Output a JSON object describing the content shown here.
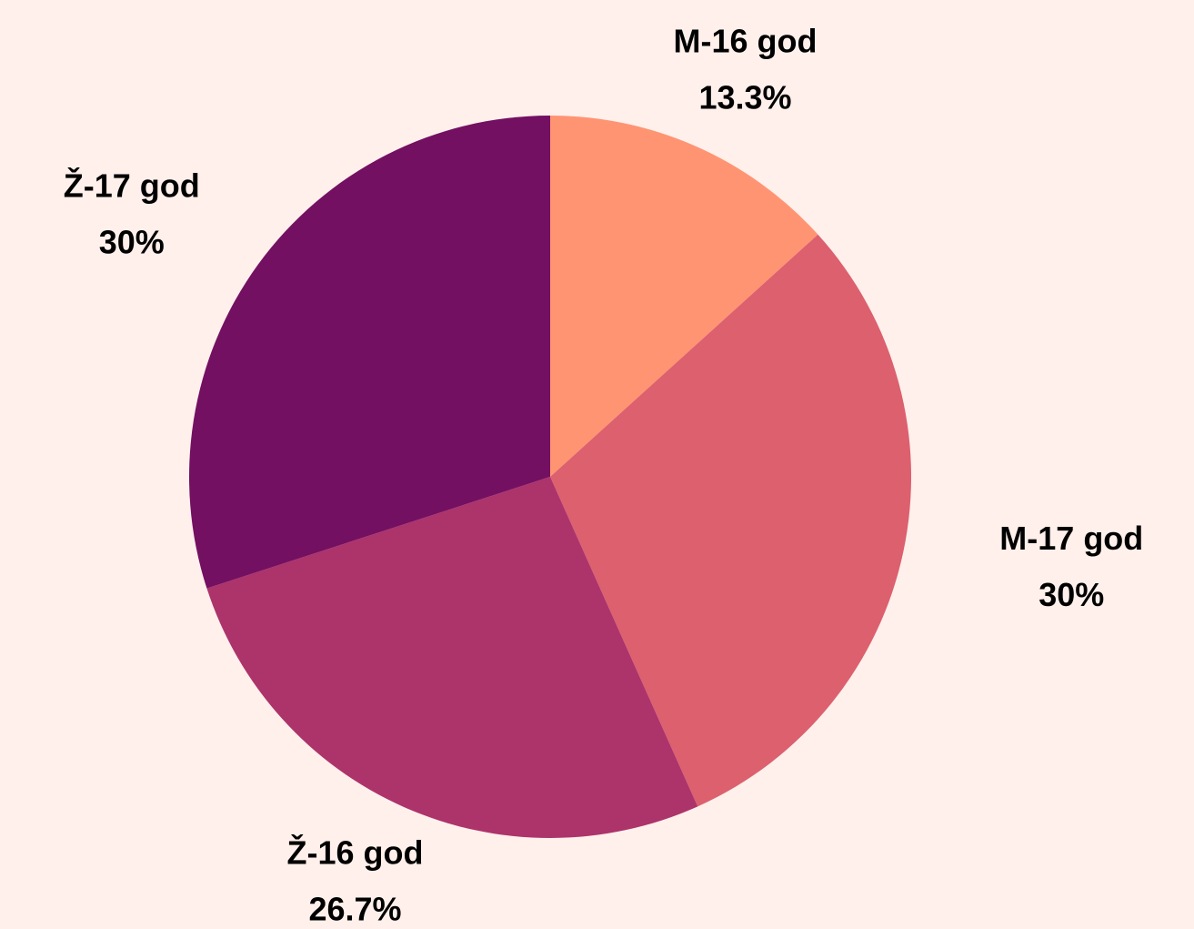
{
  "chart_data": {
    "type": "pie",
    "categories": [
      "M-16 god",
      "M-17 god",
      "Ž-16 god",
      "Ž-17 god"
    ],
    "values": [
      13.3,
      30,
      26.7,
      30
    ],
    "value_labels": [
      "13.3%",
      "30%",
      "26.7%",
      "30%"
    ],
    "colors": [
      "#ff9473",
      "#dc606e",
      "#ad336b",
      "#731062"
    ]
  }
}
